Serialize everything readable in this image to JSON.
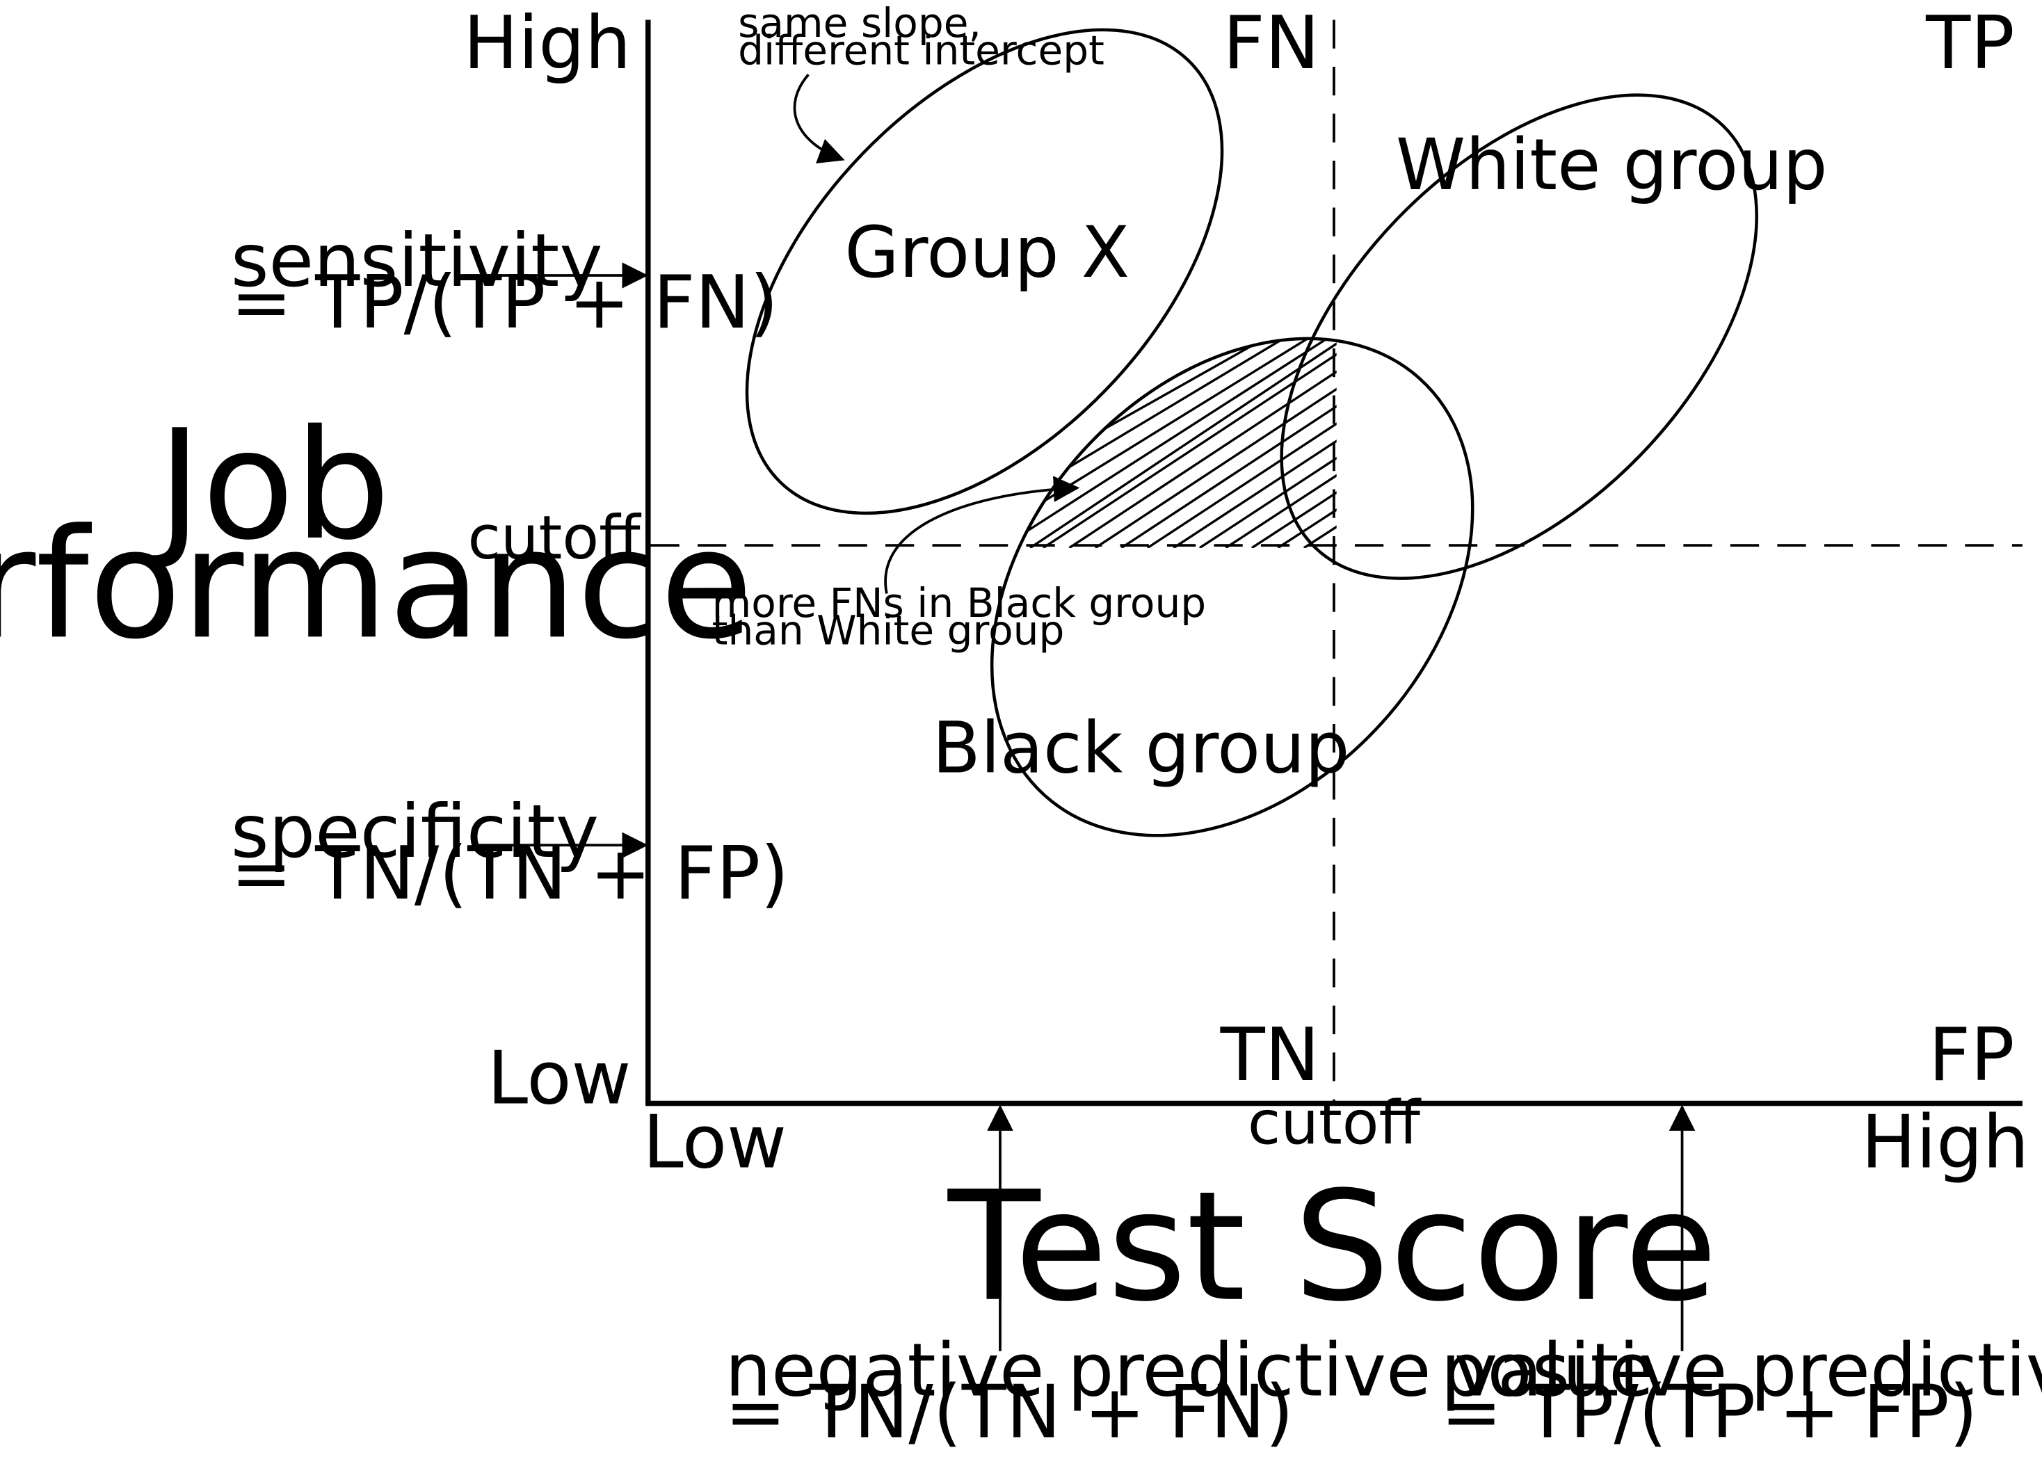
{
  "y_axis": {
    "title_line1": "Job",
    "title_line2": "Performance",
    "high": "High",
    "low": "Low",
    "cutoff": "cutoff"
  },
  "x_axis": {
    "title": "Test Score",
    "low": "Low",
    "high": "High",
    "cutoff": "cutoff"
  },
  "quadrants": {
    "fn": "FN",
    "tp": "TP",
    "tn": "TN",
    "fp": "FP"
  },
  "groups": {
    "x": "Group X",
    "white": "White group",
    "black": "Black group"
  },
  "annotations": {
    "slope_line1": "same slope,",
    "slope_line2": "different intercept",
    "fn_line1": "more FNs in Black group",
    "fn_line2": "than White group"
  },
  "metrics": {
    "sensitivity": {
      "name": "sensitivity",
      "formula": "= TP/(TP + FN)"
    },
    "specificity": {
      "name": "specificity",
      "formula": "= TN/(TN + FP)"
    },
    "npv": {
      "name": "negative predictive value",
      "formula": "= TN/(TN + FN)"
    },
    "ppv": {
      "name": "positive predictive value",
      "formula": "= TP/(TP + FP)"
    }
  },
  "colors": {
    "ink": "#000000",
    "background": "#ffffff"
  }
}
